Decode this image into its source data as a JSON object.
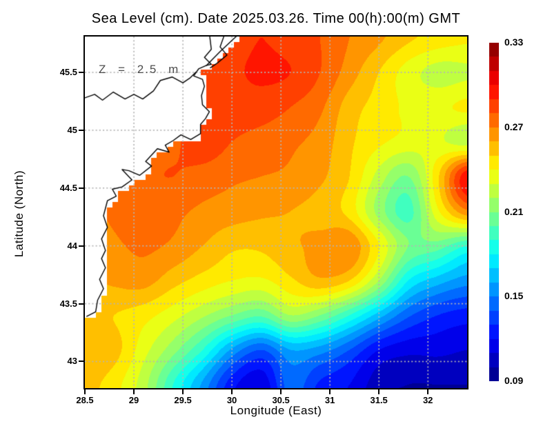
{
  "title": "Sea Level (cm). Date 2025.03.26. Time 00(h):00(m) GMT",
  "annotation": "Z = 2.5 m",
  "axes": {
    "xlabel": "Longitude (East)",
    "ylabel": "Latitude (North)",
    "xtick_values": [
      28.5,
      29,
      29.5,
      30,
      30.5,
      31,
      31.5,
      32
    ],
    "xtick_labels": [
      "28.5",
      "29",
      "29.5",
      "30",
      "30.5",
      "31",
      "31.5",
      "32"
    ],
    "ytick_values": [
      45.5,
      45,
      44.5,
      44,
      43.5,
      43
    ],
    "ytick_labels": [
      "45.5",
      "45",
      "44.5",
      "44",
      "43.5",
      "43"
    ],
    "xgrid": [
      29,
      29.5,
      30,
      30.5,
      31,
      31.5,
      32
    ],
    "ygrid": [
      45.5,
      45,
      44.5,
      44,
      43.5,
      43
    ]
  },
  "colorbar": {
    "tick_values": [
      0.33,
      0.27,
      0.21,
      0.15,
      0.09
    ],
    "tick_labels": [
      "0.33",
      "0.27",
      "0.21",
      "0.15",
      "0.09"
    ],
    "min": 0.09,
    "max": 0.33,
    "step": 0.01
  },
  "chart_data": {
    "type": "heatmap",
    "title": "Sea Level (cm). Date 2025.03.26. Time 00(h):00(m) GMT",
    "xlabel": "Longitude (East)",
    "ylabel": "Latitude (North)",
    "annotation": "Z = 2.5 m",
    "colormap": "jet",
    "value_range": [
      0.09,
      0.33
    ],
    "lon_range": [
      28.5,
      32.4
    ],
    "lat_range": [
      42.77,
      45.81
    ],
    "grid_style": "dotted",
    "lon": [
      28.5,
      28.8,
      29.1,
      29.4,
      29.7,
      30.0,
      30.3,
      30.6,
      30.9,
      31.2,
      31.5,
      31.8,
      32.1,
      32.4
    ],
    "lat": [
      45.8,
      45.5,
      45.2,
      44.9,
      44.6,
      44.3,
      44.0,
      43.7,
      43.4,
      43.1,
      42.8
    ],
    "values": [
      [
        0.27,
        0.27,
        0.275,
        0.28,
        0.285,
        0.285,
        0.29,
        0.285,
        0.28,
        0.27,
        0.262,
        0.252,
        0.246,
        0.242
      ],
      [
        0.27,
        0.27,
        0.275,
        0.28,
        0.285,
        0.288,
        0.292,
        0.29,
        0.28,
        0.265,
        0.25,
        0.235,
        0.226,
        0.228
      ],
      [
        0.27,
        0.272,
        0.275,
        0.278,
        0.282,
        0.285,
        0.285,
        0.28,
        0.272,
        0.255,
        0.246,
        0.238,
        0.238,
        0.242
      ],
      [
        0.27,
        0.272,
        0.276,
        0.278,
        0.286,
        0.28,
        0.276,
        0.272,
        0.266,
        0.252,
        0.242,
        0.236,
        0.232,
        0.225
      ],
      [
        0.27,
        0.272,
        0.278,
        0.28,
        0.276,
        0.272,
        0.27,
        0.268,
        0.262,
        0.25,
        0.226,
        0.21,
        0.248,
        0.298
      ],
      [
        0.268,
        0.272,
        0.278,
        0.273,
        0.268,
        0.265,
        0.262,
        0.26,
        0.256,
        0.246,
        0.216,
        0.196,
        0.238,
        0.268
      ],
      [
        0.262,
        0.268,
        0.272,
        0.268,
        0.26,
        0.252,
        0.252,
        0.258,
        0.263,
        0.268,
        0.24,
        0.21,
        0.205,
        0.19
      ],
      [
        0.258,
        0.262,
        0.264,
        0.254,
        0.246,
        0.24,
        0.238,
        0.248,
        0.258,
        0.25,
        0.22,
        0.18,
        0.165,
        0.155
      ],
      [
        0.252,
        0.25,
        0.244,
        0.234,
        0.222,
        0.21,
        0.202,
        0.22,
        0.21,
        0.19,
        0.165,
        0.142,
        0.13,
        0.125
      ],
      [
        0.26,
        0.254,
        0.234,
        0.214,
        0.19,
        0.158,
        0.14,
        0.16,
        0.155,
        0.14,
        0.12,
        0.113,
        0.113,
        0.11
      ],
      [
        0.254,
        0.244,
        0.224,
        0.19,
        0.158,
        0.124,
        0.112,
        0.145,
        0.128,
        0.12,
        0.104,
        0.1,
        0.1,
        0.1
      ]
    ],
    "coastline": {
      "main": [
        [
          30.08,
          45.84
        ],
        [
          29.88,
          45.68
        ],
        [
          29.74,
          45.56
        ],
        [
          29.66,
          45.53
        ],
        [
          29.61,
          45.47
        ],
        [
          29.7,
          45.44
        ],
        [
          29.72,
          45.38
        ],
        [
          29.69,
          45.3
        ],
        [
          29.7,
          45.22
        ],
        [
          29.77,
          45.16
        ],
        [
          29.73,
          45.1
        ],
        [
          29.68,
          45.05
        ],
        [
          29.68,
          44.97
        ],
        [
          29.58,
          44.92
        ],
        [
          29.48,
          44.96
        ],
        [
          29.4,
          44.91
        ],
        [
          29.32,
          44.87
        ],
        [
          29.36,
          44.81
        ],
        [
          29.24,
          44.84
        ],
        [
          29.12,
          44.73
        ],
        [
          29.18,
          44.69
        ],
        [
          29.06,
          44.61
        ],
        [
          28.95,
          44.65
        ],
        [
          28.88,
          44.66
        ],
        [
          28.98,
          44.57
        ],
        [
          28.88,
          44.51
        ],
        [
          28.78,
          44.49
        ],
        [
          28.82,
          44.43
        ],
        [
          28.73,
          44.39
        ],
        [
          28.69,
          44.26
        ],
        [
          28.73,
          44.16
        ],
        [
          28.67,
          44.06
        ],
        [
          28.71,
          43.96
        ],
        [
          28.67,
          43.89
        ],
        [
          28.71,
          43.81
        ],
        [
          28.65,
          43.71
        ],
        [
          28.69,
          43.63
        ],
        [
          28.63,
          43.53
        ],
        [
          28.61,
          43.43
        ],
        [
          28.52,
          43.39
        ]
      ],
      "inland": [
        [
          [
            28.5,
            45.28
          ],
          [
            28.6,
            45.31
          ],
          [
            28.68,
            45.26
          ],
          [
            28.79,
            45.33
          ],
          [
            28.91,
            45.27
          ],
          [
            29.0,
            45.31
          ],
          [
            29.09,
            45.27
          ],
          [
            29.2,
            45.34
          ],
          [
            29.27,
            45.43
          ],
          [
            29.39,
            45.46
          ],
          [
            29.5,
            45.41
          ],
          [
            29.57,
            45.45
          ],
          [
            29.63,
            45.5
          ]
        ],
        [
          [
            29.77,
            45.84
          ],
          [
            29.79,
            45.7
          ],
          [
            29.72,
            45.63
          ],
          [
            29.79,
            45.57
          ],
          [
            29.74,
            45.56
          ]
        ],
        [
          [
            29.93,
            45.84
          ],
          [
            29.88,
            45.72
          ],
          [
            29.95,
            45.65
          ],
          [
            29.85,
            45.58
          ],
          [
            29.78,
            45.54
          ]
        ]
      ]
    }
  }
}
